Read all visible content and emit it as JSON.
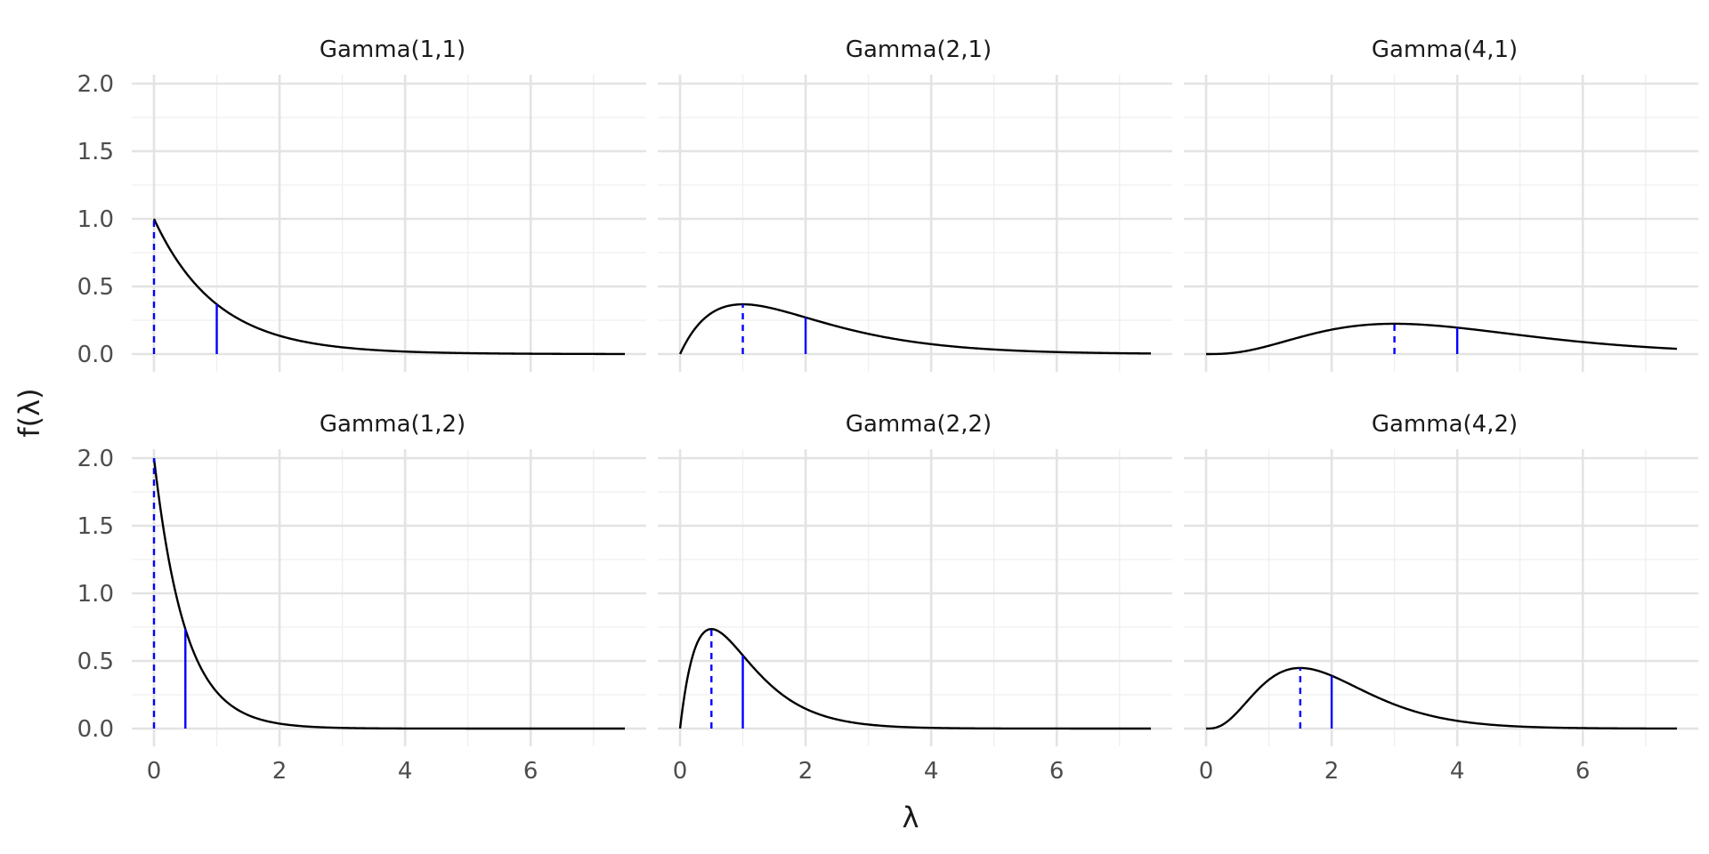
{
  "chart_data": {
    "type": "line",
    "layout": "facet-grid-2x3",
    "xlabel": "λ",
    "ylabel": "f(λ)",
    "xlim": [
      0,
      7.5
    ],
    "ylim": [
      0,
      2
    ],
    "x_ticks": [
      0,
      2,
      4,
      6
    ],
    "x_tick_labels": [
      "0",
      "2",
      "4",
      "6"
    ],
    "y_ticks": [
      0,
      0.5,
      1.0,
      1.5,
      2.0
    ],
    "y_tick_labels": [
      "0.0",
      "0.5",
      "1.0",
      "1.5",
      "2.0"
    ],
    "grid": true,
    "colors": {
      "density": "#000000",
      "reference": "#0000ff",
      "grid": "#e3e3e3"
    },
    "reference_lines": {
      "dashed": "mode",
      "solid": "mean"
    },
    "panels": [
      {
        "title": "Gamma(1,1)",
        "shape": 1,
        "rate": 1,
        "mode": 0,
        "mean": 1
      },
      {
        "title": "Gamma(2,1)",
        "shape": 2,
        "rate": 1,
        "mode": 1,
        "mean": 2
      },
      {
        "title": "Gamma(4,1)",
        "shape": 4,
        "rate": 1,
        "mode": 3,
        "mean": 4
      },
      {
        "title": "Gamma(1,2)",
        "shape": 1,
        "rate": 2,
        "mode": 0,
        "mean": 0.5
      },
      {
        "title": "Gamma(2,2)",
        "shape": 2,
        "rate": 2,
        "mode": 0.5,
        "mean": 1
      },
      {
        "title": "Gamma(4,2)",
        "shape": 4,
        "rate": 2,
        "mode": 1.5,
        "mean": 2
      }
    ]
  }
}
